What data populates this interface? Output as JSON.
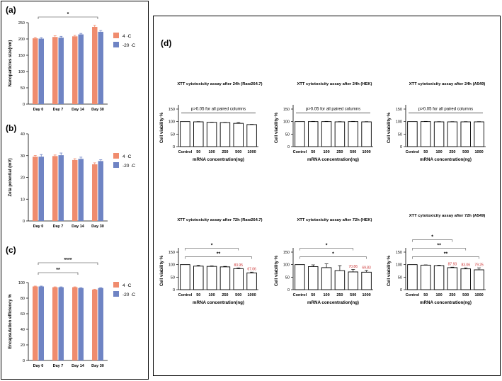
{
  "figure": {
    "panel_labels": {
      "a": "(a)",
      "b": "(b)",
      "c": "(c)",
      "d": "(d)"
    },
    "colors": {
      "warm": "#f08c6e",
      "cold": "#6f84c4",
      "significance_text": "#cc3333"
    }
  },
  "chart_data": [
    {
      "id": "a",
      "type": "bar",
      "title": "",
      "ylabel": "Nanoparticles size(nm)",
      "categories": [
        "Day 0",
        "Day 7",
        "Day 14",
        "Day 30"
      ],
      "series": [
        {
          "name": "4 ·C",
          "values": [
            202,
            206,
            208,
            237
          ],
          "errors": [
            3,
            4,
            3,
            5
          ]
        },
        {
          "name": "-20 ·C",
          "values": [
            201,
            204,
            214,
            222
          ],
          "errors": [
            3,
            4,
            3,
            4
          ]
        }
      ],
      "ylim": [
        0,
        250
      ],
      "yticks": [
        0,
        50,
        100,
        150,
        200,
        250
      ],
      "legend": "right",
      "annotations": [
        {
          "from": 0,
          "to": 3,
          "label": "*"
        }
      ]
    },
    {
      "id": "b",
      "type": "bar",
      "title": "",
      "ylabel": "Zeta potential (mV)",
      "categories": [
        "Day 0",
        "Day 7",
        "Day 14",
        "Day 30"
      ],
      "series": [
        {
          "name": "4 ·C",
          "values": [
            29.5,
            29.8,
            28.0,
            26.0
          ],
          "errors": [
            0.6,
            0.5,
            0.6,
            0.7
          ]
        },
        {
          "name": "-20 ·C",
          "values": [
            29.5,
            30.2,
            28.5,
            27.5
          ],
          "errors": [
            1.0,
            1.0,
            0.8,
            0.6
          ]
        }
      ],
      "ylim": [
        0,
        40
      ],
      "yticks": [
        0,
        10,
        20,
        30,
        40
      ],
      "legend": "right",
      "annotations": []
    },
    {
      "id": "c",
      "type": "bar",
      "title": "",
      "ylabel": "Encapsulation efficiency %",
      "categories": [
        "Day 0",
        "Day 7",
        "Day 14",
        "Day 30"
      ],
      "series": [
        {
          "name": "4 ·C",
          "values": [
            95,
            94,
            94,
            91
          ],
          "errors": [
            0.5,
            0.5,
            0.5,
            0.5
          ]
        },
        {
          "name": "-20 ·C",
          "values": [
            95,
            94,
            93,
            93
          ],
          "errors": [
            0.5,
            0.5,
            0.5,
            0.5
          ]
        }
      ],
      "ylim": [
        0,
        100
      ],
      "yticks": [
        0,
        20,
        40,
        60,
        80,
        100
      ],
      "legend": "right",
      "annotations": [
        {
          "from": 0,
          "to": 3,
          "label": "****"
        },
        {
          "from": 0,
          "to": 2,
          "label": "**"
        }
      ]
    },
    {
      "id": "d1",
      "type": "bar",
      "title": "XTT cytotoxicity assay after 24h (Raw264.7)",
      "xlabel": "mRNA concentration(ng)",
      "ylabel": "Cell viability %",
      "categories": [
        "Control",
        "50",
        "100",
        "250",
        "500",
        "1000"
      ],
      "values": [
        100,
        99,
        97,
        96,
        93,
        88
      ],
      "errors": [
        0,
        1,
        1,
        1,
        3,
        1
      ],
      "ylim": [
        0,
        150
      ],
      "yticks": [
        0,
        50,
        100,
        150
      ],
      "note": "p>0.05 for all paired columns",
      "value_labels": [],
      "annotations": []
    },
    {
      "id": "d2",
      "type": "bar",
      "title": "XTT cytotoxicity assay after 24h (HEK)",
      "xlabel": "mRNA concentration(ng)",
      "ylabel": "Cell viability %",
      "categories": [
        "Control",
        "50",
        "100",
        "250",
        "500",
        "1000"
      ],
      "values": [
        100,
        100,
        100,
        99,
        100,
        99
      ],
      "errors": [
        0,
        1,
        1,
        1,
        1,
        1
      ],
      "ylim": [
        0,
        150
      ],
      "yticks": [
        0,
        50,
        100,
        150
      ],
      "note": "p>0.05 for all paired columns",
      "value_labels": [],
      "annotations": []
    },
    {
      "id": "d3",
      "type": "bar",
      "title": "XTT cytotoxicity assay after 24h (A549)",
      "xlabel": "mRNA concentration(ng)",
      "ylabel": "Cell viability %",
      "categories": [
        "Control",
        "50",
        "100",
        "250",
        "500",
        "1000"
      ],
      "values": [
        100,
        100,
        99,
        99,
        99,
        99
      ],
      "errors": [
        0,
        1,
        1,
        1,
        1,
        1
      ],
      "ylim": [
        0,
        150
      ],
      "yticks": [
        0,
        50,
        100,
        150
      ],
      "note": "p>0.05 for all paired columns",
      "value_labels": [],
      "annotations": []
    },
    {
      "id": "d4",
      "type": "bar",
      "title": "XTT cytotoxicity assay after 72h (Raw264.7)",
      "xlabel": "mRNA concentration(ng)",
      "ylabel": "Cell viability %",
      "categories": [
        "Control",
        "50",
        "100",
        "250",
        "500",
        "1000"
      ],
      "values": [
        100,
        94,
        93,
        91,
        83.95,
        67.06
      ],
      "errors": [
        0,
        3,
        2,
        2,
        3,
        3
      ],
      "ylim": [
        0,
        150
      ],
      "yticks": [
        0,
        50,
        100,
        150
      ],
      "note": "",
      "value_labels": [
        {
          "index": 4,
          "text": "83.95"
        },
        {
          "index": 5,
          "text": "67.06"
        }
      ],
      "annotations": [
        {
          "from": 0,
          "to": 4,
          "label": "*"
        },
        {
          "from": 0,
          "to": 5,
          "label": "**"
        }
      ]
    },
    {
      "id": "d5",
      "type": "bar",
      "title": "XTT cytotoxicity assay after 72h (HEK)",
      "xlabel": "mRNA concentration(ng)",
      "ylabel": "Cell viability %",
      "categories": [
        "Control",
        "50",
        "100",
        "250",
        "500",
        "1000"
      ],
      "values": [
        100,
        92,
        88,
        76,
        70.86,
        69.83
      ],
      "errors": [
        0,
        7,
        15,
        20,
        10,
        7
      ],
      "ylim": [
        0,
        150
      ],
      "yticks": [
        0,
        50,
        100,
        150
      ],
      "note": "",
      "value_labels": [
        {
          "index": 4,
          "text": "70.86"
        },
        {
          "index": 5,
          "text": "69.83"
        }
      ],
      "annotations": [
        {
          "from": 0,
          "to": 4,
          "label": "*"
        },
        {
          "from": 0,
          "to": 5,
          "label": "*"
        }
      ]
    },
    {
      "id": "d6",
      "type": "bar",
      "title": "XTT cytotoxicity assay after 72h (A549)",
      "xlabel": "mRNA concentration(ng)",
      "ylabel": "Cell viability %",
      "categories": [
        "Control",
        "50",
        "100",
        "250",
        "500",
        "1000"
      ],
      "values": [
        100,
        98,
        96,
        87.93,
        83.06,
        79.25
      ],
      "errors": [
        0,
        1,
        2,
        2,
        4,
        8
      ],
      "ylim": [
        0,
        150
      ],
      "yticks": [
        0,
        50,
        100,
        150
      ],
      "note": "",
      "value_labels": [
        {
          "index": 3,
          "text": "87.93"
        },
        {
          "index": 4,
          "text": "83.06"
        },
        {
          "index": 5,
          "text": "79.25"
        }
      ],
      "annotations": [
        {
          "from": 0,
          "to": 3,
          "label": "*"
        },
        {
          "from": 0,
          "to": 4,
          "label": "**"
        },
        {
          "from": 0,
          "to": 5,
          "label": "**"
        }
      ]
    }
  ]
}
